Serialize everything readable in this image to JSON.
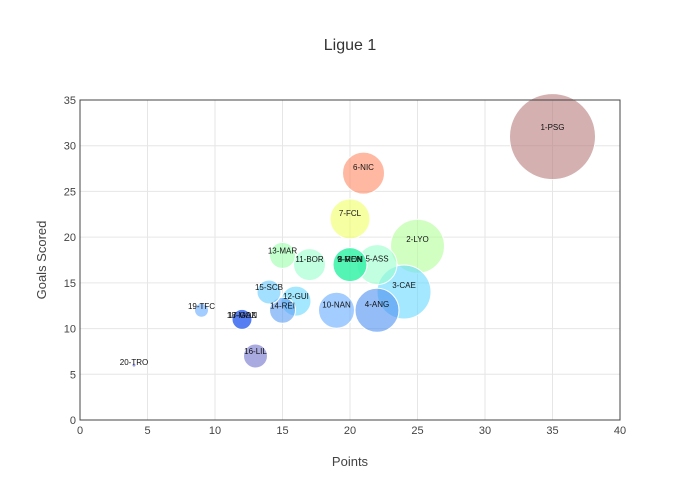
{
  "chart_data": {
    "type": "scatter",
    "title": "Ligue 1",
    "xlabel": "Points",
    "ylabel": "Goals Scored",
    "xlim": [
      0,
      40
    ],
    "ylim": [
      0,
      35
    ],
    "xticks": [
      0,
      5,
      10,
      15,
      20,
      25,
      30,
      35,
      40
    ],
    "yticks": [
      0,
      5,
      10,
      15,
      20,
      25,
      30,
      35
    ],
    "grid": true,
    "legend": "none",
    "points": [
      {
        "label": "1-PSG",
        "x": 35,
        "y": 31,
        "size": 43,
        "color": "#b87c7c"
      },
      {
        "label": "2-LYO",
        "x": 25,
        "y": 19,
        "size": 27,
        "color": "#b3ff99"
      },
      {
        "label": "3-CAE",
        "x": 24,
        "y": 14,
        "size": 27,
        "color": "#66d9ff"
      },
      {
        "label": "4-ANG",
        "x": 22,
        "y": 12,
        "size": 22,
        "color": "#4d8ff0"
      },
      {
        "label": "5-ASS",
        "x": 22,
        "y": 17,
        "size": 20,
        "color": "#99ffcc"
      },
      {
        "label": "6-NIC",
        "x": 21,
        "y": 27,
        "size": 21,
        "color": "#ff8a66"
      },
      {
        "label": "7-FCL",
        "x": 20,
        "y": 22,
        "size": 20,
        "color": "#f2ff66"
      },
      {
        "label": "8-REN",
        "x": 20,
        "y": 17,
        "size": 17,
        "color": "#33f2a6"
      },
      {
        "label": "9-MON",
        "x": 20,
        "y": 17,
        "size": 17,
        "color": "#33f2a6"
      },
      {
        "label": "10-NAN",
        "x": 19,
        "y": 12,
        "size": 18,
        "color": "#66aaff"
      },
      {
        "label": "11-BOR",
        "x": 17,
        "y": 17,
        "size": 16,
        "color": "#99ffcc"
      },
      {
        "label": "12-GUI",
        "x": 16,
        "y": 13,
        "size": 15,
        "color": "#66d9ff"
      },
      {
        "label": "13-MAR",
        "x": 15,
        "y": 18,
        "size": 13,
        "color": "#99ffaa"
      },
      {
        "label": "14-REI",
        "x": 15,
        "y": 12,
        "size": 13,
        "color": "#5b9cf5"
      },
      {
        "label": "15-SCB",
        "x": 14,
        "y": 14,
        "size": 12,
        "color": "#66ccff"
      },
      {
        "label": "16-LIL",
        "x": 13,
        "y": 7,
        "size": 12,
        "color": "#6f72cc"
      },
      {
        "label": "17-GAZ",
        "x": 12,
        "y": 11,
        "size": 10,
        "color": "#3366ee"
      },
      {
        "label": "18-MON",
        "x": 12,
        "y": 11,
        "size": 10,
        "color": "#3366ee"
      },
      {
        "label": "19-TFC",
        "x": 9,
        "y": 12,
        "size": 7,
        "color": "#66aaff"
      },
      {
        "label": "20-TRO",
        "x": 4,
        "y": 6,
        "size": 2,
        "color": "#5b5bd6"
      }
    ]
  }
}
